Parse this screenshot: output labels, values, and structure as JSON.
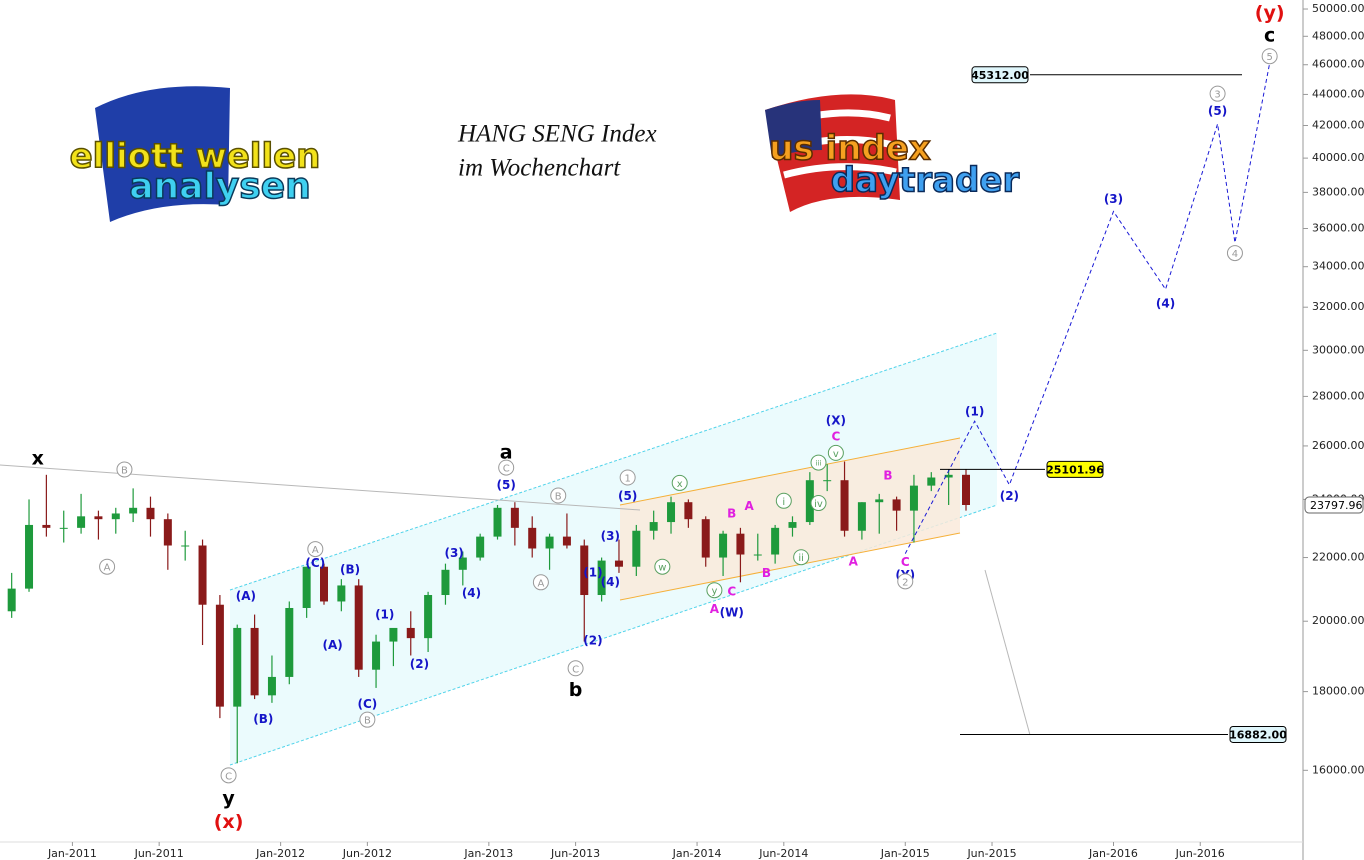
{
  "chart_data": {
    "type": "candlestick",
    "title": [
      "HANG SENG Index",
      "im Wochenchart"
    ],
    "logos": [
      [
        "elliott wellen",
        "analysen"
      ],
      [
        "us index",
        "daytrader"
      ]
    ],
    "log_scale": true,
    "up_color": "#1e9a3c",
    "down_color": "#8a1a1a",
    "x": [
      "2010-09",
      "2010-10",
      "2010-11",
      "2010-12",
      "2011-01",
      "2011-02",
      "2011-03",
      "2011-04",
      "2011-05",
      "2011-06",
      "2011-07",
      "2011-08",
      "2011-09",
      "2011-10",
      "2011-11",
      "2011-12",
      "2012-01",
      "2012-02",
      "2012-03",
      "2012-04",
      "2012-05",
      "2012-06",
      "2012-07",
      "2012-08",
      "2012-09",
      "2012-10",
      "2012-11",
      "2012-12",
      "2013-01",
      "2013-02",
      "2013-03",
      "2013-04",
      "2013-05",
      "2013-06",
      "2013-07",
      "2013-08",
      "2013-09",
      "2013-10",
      "2013-11",
      "2013-12",
      "2014-01",
      "2014-02",
      "2014-03",
      "2014-04",
      "2014-05",
      "2014-06",
      "2014-07",
      "2014-08",
      "2014-09",
      "2014-10",
      "2014-11",
      "2014-12",
      "2015-01",
      "2015-02",
      "2015-03",
      "2015-04"
    ],
    "open": [
      20300,
      21000,
      23100,
      23000,
      23000,
      23400,
      23300,
      23500,
      23700,
      23300,
      22400,
      22400,
      20500,
      17600,
      19800,
      17900,
      18400,
      20400,
      21700,
      20600,
      21100,
      18600,
      19400,
      19800,
      19500,
      20800,
      21600,
      22000,
      22700,
      23700,
      23000,
      22300,
      22700,
      22400,
      20800,
      21900,
      21700,
      22900,
      23200,
      23900,
      23300,
      22000,
      22800,
      22100,
      22100,
      23000,
      23200,
      24700,
      24700,
      22900,
      23900,
      24000,
      23600,
      24500,
      24800,
      24900
    ],
    "high": [
      21500,
      24000,
      24900,
      23600,
      24200,
      23600,
      23700,
      24400,
      24100,
      23500,
      22900,
      22600,
      20800,
      19900,
      20200,
      19000,
      20600,
      21700,
      21800,
      21300,
      21300,
      19600,
      19600,
      20300,
      20900,
      21800,
      22200,
      22800,
      23800,
      23900,
      23400,
      22800,
      23500,
      22600,
      22000,
      22600,
      23100,
      23600,
      24100,
      24000,
      23400,
      22900,
      23000,
      22800,
      23100,
      23400,
      25000,
      25300,
      25400,
      23900,
      24200,
      24100,
      24900,
      25000,
      25100,
      25100
    ],
    "low": [
      20100,
      20900,
      22700,
      22500,
      22800,
      22600,
      22800,
      23200,
      22700,
      21600,
      21900,
      19300,
      17300,
      16170,
      17800,
      17700,
      18200,
      20100,
      20500,
      20300,
      18400,
      18100,
      18700,
      19000,
      19100,
      20500,
      21100,
      21900,
      22600,
      22400,
      22000,
      21600,
      22300,
      19400,
      20600,
      21500,
      21400,
      22600,
      22800,
      23000,
      21700,
      21400,
      21200,
      21900,
      21800,
      22700,
      23100,
      24300,
      22700,
      22600,
      22800,
      22900,
      22500,
      24300,
      23800,
      23600
    ],
    "close": [
      21000,
      23100,
      23000,
      23000,
      23400,
      23300,
      23500,
      23700,
      23300,
      22400,
      22400,
      20500,
      17600,
      19800,
      17900,
      18400,
      20400,
      21700,
      20600,
      21100,
      18600,
      19400,
      19800,
      19500,
      20800,
      21600,
      22000,
      22700,
      23700,
      23000,
      22300,
      22700,
      22400,
      20800,
      21900,
      21700,
      22900,
      23200,
      23900,
      23300,
      22000,
      22800,
      22100,
      22100,
      23000,
      23200,
      24700,
      24700,
      22900,
      23900,
      24000,
      23600,
      24500,
      24800,
      24900,
      23800
    ],
    "projection": {
      "color": "#1a1ad6",
      "x": [
        "2015-01",
        "2015-05",
        "2015-07",
        "2016-01",
        "2016-04",
        "2016-07",
        "2016-08",
        "2016-10"
      ],
      "values": [
        22130,
        26980,
        24530,
        36930,
        32870,
        42100,
        35250,
        46100
      ]
    },
    "levels": [
      {
        "value": 45312,
        "label": "45312.00",
        "color": "#dff6fb"
      },
      {
        "value": 25101.96,
        "label": "25101.96",
        "color": "#ffff00"
      },
      {
        "value": 16882,
        "label": "16882.00",
        "color": "#dff6fb"
      }
    ],
    "last_price": {
      "value": 23797.96,
      "label": "23797.96"
    },
    "xlim": [
      "2010-09",
      "2016-11"
    ],
    "xticks": [
      {
        "value": "2011-01",
        "label": "Jan-2011"
      },
      {
        "value": "2011-06",
        "label": "Jun-2011"
      },
      {
        "value": "2012-01",
        "label": "Jan-2012"
      },
      {
        "value": "2012-06",
        "label": "Jun-2012"
      },
      {
        "value": "2013-01",
        "label": "Jan-2013"
      },
      {
        "value": "2013-06",
        "label": "Jun-2013"
      },
      {
        "value": "2014-01",
        "label": "Jan-2014"
      },
      {
        "value": "2014-06",
        "label": "Jun-2014"
      },
      {
        "value": "2015-01",
        "label": "Jan-2015"
      },
      {
        "value": "2015-06",
        "label": "Jun-2015"
      },
      {
        "value": "2016-01",
        "label": "Jan-2016"
      },
      {
        "value": "2016-06",
        "label": "Jun-2016"
      }
    ],
    "ylim": [
      13990,
      50680
    ],
    "yticks": [
      {
        "value": 16000,
        "label": "16000.00"
      },
      {
        "value": 18000,
        "label": "18000.00"
      },
      {
        "value": 20000,
        "label": "20000.00"
      },
      {
        "value": 22000,
        "label": "22000.00"
      },
      {
        "value": 24000,
        "label": "24000.00"
      },
      {
        "value": 26000,
        "label": "26000.00"
      },
      {
        "value": 28000,
        "label": "28000.00"
      },
      {
        "value": 30000,
        "label": "30000.00"
      },
      {
        "value": 32000,
        "label": "32000.00"
      },
      {
        "value": 34000,
        "label": "34000.00"
      },
      {
        "value": 36000,
        "label": "36000.00"
      },
      {
        "value": 38000,
        "label": "38000.00"
      },
      {
        "value": 40000,
        "label": "40000.00"
      },
      {
        "value": 42000,
        "label": "42000.00"
      },
      {
        "value": 44000,
        "label": "44000.00"
      },
      {
        "value": 46000,
        "label": "46000.00"
      },
      {
        "value": 48000,
        "label": "48000.00"
      },
      {
        "value": 50000,
        "label": "50000.00"
      }
    ],
    "annotations": [
      {
        "text": "x",
        "x": "2010-11",
        "y": 25500,
        "style": "big",
        "color": "#000000"
      },
      {
        "text": "B",
        "x": "2011-04",
        "y": 25100,
        "style": "circle",
        "color": "#999999"
      },
      {
        "text": "A",
        "x": "2011-03",
        "y": 21700,
        "style": "circle",
        "color": "#999999"
      },
      {
        "text": "C",
        "x": "2011-10",
        "y": 15880,
        "style": "circle",
        "color": "#999999"
      },
      {
        "text": "y",
        "x": "2011-10",
        "y": 15330,
        "style": "big",
        "color": "#000000"
      },
      {
        "text": "(x)",
        "x": "2011-10",
        "y": 14800,
        "style": "big",
        "color": "#e01010"
      },
      {
        "text": "(A)",
        "x": "2011-11",
        "y": 20760,
        "style": "plain",
        "color": "#1515c8"
      },
      {
        "text": "(B)",
        "x": "2011-12",
        "y": 17260,
        "style": "plain",
        "color": "#1515c8"
      },
      {
        "text": "A",
        "x": "2012-03",
        "y": 22280,
        "style": "circle",
        "color": "#999999"
      },
      {
        "text": "(C)",
        "x": "2012-03",
        "y": 21800,
        "style": "plain",
        "color": "#1515c8"
      },
      {
        "text": "(B)",
        "x": "2012-05",
        "y": 21600,
        "style": "plain",
        "color": "#1515c8"
      },
      {
        "text": "(A)",
        "x": "2012-04",
        "y": 19280,
        "style": "plain",
        "color": "#1515c8"
      },
      {
        "text": "(C)",
        "x": "2012-06",
        "y": 17660,
        "style": "plain",
        "color": "#1515c8"
      },
      {
        "text": "B",
        "x": "2012-06",
        "y": 17260,
        "style": "circle",
        "color": "#999999"
      },
      {
        "text": "(1)",
        "x": "2012-07",
        "y": 20180,
        "style": "plain",
        "color": "#1515c8"
      },
      {
        "text": "(2)",
        "x": "2012-09",
        "y": 18740,
        "style": "plain",
        "color": "#1515c8"
      },
      {
        "text": "(3)",
        "x": "2012-11",
        "y": 22130,
        "style": "plain",
        "color": "#1515c8"
      },
      {
        "text": "(4)",
        "x": "2012-12",
        "y": 20840,
        "style": "plain",
        "color": "#1515c8"
      },
      {
        "text": "a",
        "x": "2013-02",
        "y": 25730,
        "style": "big",
        "color": "#000000"
      },
      {
        "text": "C",
        "x": "2013-02",
        "y": 25170,
        "style": "circle",
        "color": "#999999"
      },
      {
        "text": "(5)",
        "x": "2013-02",
        "y": 24500,
        "style": "plain",
        "color": "#1515c8"
      },
      {
        "text": "B",
        "x": "2013-05",
        "y": 24140,
        "style": "circle",
        "color": "#999999"
      },
      {
        "text": "A",
        "x": "2013-04",
        "y": 21200,
        "style": "circle",
        "color": "#999999"
      },
      {
        "text": "(1)",
        "x": "2013-07",
        "y": 21500,
        "style": "plain",
        "color": "#1515c8"
      },
      {
        "text": "(2)",
        "x": "2013-07",
        "y": 19420,
        "style": "plain",
        "color": "#1515c8"
      },
      {
        "text": "C",
        "x": "2013-06",
        "y": 18640,
        "style": "circle",
        "color": "#999999"
      },
      {
        "text": "b",
        "x": "2013-06",
        "y": 18030,
        "style": "big",
        "color": "#000000"
      },
      {
        "text": "(3)",
        "x": "2013-08",
        "y": 22700,
        "style": "plain",
        "color": "#1515c8"
      },
      {
        "text": "(4)",
        "x": "2013-08",
        "y": 21200,
        "style": "plain",
        "color": "#1515c8"
      },
      {
        "text": "(5)",
        "x": "2013-09",
        "y": 24100,
        "style": "plain",
        "color": "#1515c8"
      },
      {
        "text": "1",
        "x": "2013-09",
        "y": 24800,
        "style": "circle",
        "color": "#999999"
      },
      {
        "text": "x",
        "x": "2013-12",
        "y": 24600,
        "style": "circle",
        "color": "#5aa060"
      },
      {
        "text": "w",
        "x": "2013-11",
        "y": 21700,
        "style": "circle",
        "color": "#5aa060"
      },
      {
        "text": "y",
        "x": "2014-02",
        "y": 20950,
        "style": "circle",
        "color": "#5aa060"
      },
      {
        "text": "A",
        "x": "2014-02",
        "y": 20350,
        "style": "plain",
        "color": "#e020e0"
      },
      {
        "text": "(W)",
        "x": "2014-03",
        "y": 20250,
        "style": "plain",
        "color": "#1515c8"
      },
      {
        "text": "C",
        "x": "2014-03",
        "y": 20900,
        "style": "plain",
        "color": "#e020e0"
      },
      {
        "text": "B",
        "x": "2014-03",
        "y": 23490,
        "style": "plain",
        "color": "#e020e0"
      },
      {
        "text": "A",
        "x": "2014-04",
        "y": 23750,
        "style": "plain",
        "color": "#e020e0"
      },
      {
        "text": "B",
        "x": "2014-05",
        "y": 21480,
        "style": "plain",
        "color": "#e020e0"
      },
      {
        "text": "i",
        "x": "2014-06",
        "y": 23950,
        "style": "circle",
        "color": "#5aa060"
      },
      {
        "text": "ii",
        "x": "2014-07",
        "y": 22010,
        "style": "circle",
        "color": "#5aa060"
      },
      {
        "text": "iii",
        "x": "2014-08",
        "y": 25360,
        "style": "circle",
        "color": "#5aa060"
      },
      {
        "text": "iv",
        "x": "2014-08",
        "y": 23870,
        "style": "circle",
        "color": "#5aa060"
      },
      {
        "text": "v",
        "x": "2014-09",
        "y": 25730,
        "style": "circle",
        "color": "#5aa060"
      },
      {
        "text": "C",
        "x": "2014-09",
        "y": 26340,
        "style": "plain",
        "color": "#e020e0"
      },
      {
        "text": "(X)",
        "x": "2014-09",
        "y": 26980,
        "style": "plain",
        "color": "#1515c8"
      },
      {
        "text": "A",
        "x": "2014-10",
        "y": 21860,
        "style": "plain",
        "color": "#e020e0"
      },
      {
        "text": "B",
        "x": "2014-12",
        "y": 24860,
        "style": "plain",
        "color": "#e020e0"
      },
      {
        "text": "C",
        "x": "2015-01",
        "y": 21840,
        "style": "plain",
        "color": "#e020e0"
      },
      {
        "text": "(Y)",
        "x": "2015-01",
        "y": 21420,
        "style": "plain",
        "color": "#1515c8"
      },
      {
        "text": "2",
        "x": "2015-01",
        "y": 21230,
        "style": "circle",
        "color": "#999999"
      },
      {
        "text": "(1)",
        "x": "2015-05",
        "y": 27360,
        "style": "plain",
        "color": "#1515c8"
      },
      {
        "text": "(2)",
        "x": "2015-07",
        "y": 24100,
        "style": "plain",
        "color": "#1515c8"
      },
      {
        "text": "(3)",
        "x": "2016-01",
        "y": 37590,
        "style": "plain",
        "color": "#1515c8"
      },
      {
        "text": "(4)",
        "x": "2016-04",
        "y": 32160,
        "style": "plain",
        "color": "#1515c8"
      },
      {
        "text": "(5)",
        "x": "2016-07",
        "y": 42880,
        "style": "plain",
        "color": "#1515c8"
      },
      {
        "text": "3",
        "x": "2016-07",
        "y": 44050,
        "style": "circle",
        "color": "#999999"
      },
      {
        "text": "4",
        "x": "2016-08",
        "y": 34700,
        "style": "circle",
        "color": "#999999"
      },
      {
        "text": "5",
        "x": "2016-10",
        "y": 46590,
        "style": "circle",
        "color": "#999999"
      },
      {
        "text": "c",
        "x": "2016-10",
        "y": 48030,
        "style": "big",
        "color": "#000000"
      },
      {
        "text": "(y)",
        "x": "2016-10",
        "y": 49680,
        "style": "big",
        "color": "#e01010"
      }
    ]
  }
}
